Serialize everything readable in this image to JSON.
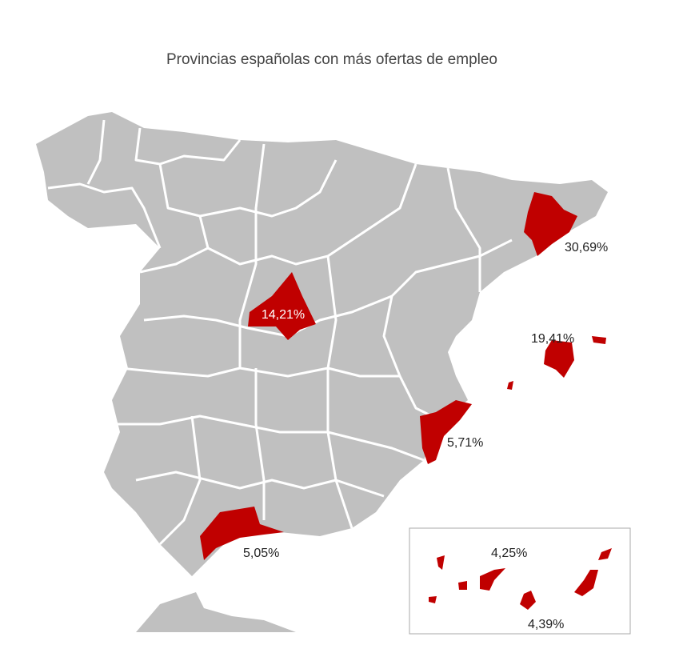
{
  "title": "Provincias españolas con más ofertas de empleo",
  "labels": {
    "barcelona": "30,69%",
    "madrid": "14,21%",
    "baleares": "19,41%",
    "alicante": "5,71%",
    "malaga": "5,05%",
    "las_palmas": "4,25%",
    "tenerife": "4,39%"
  }
}
